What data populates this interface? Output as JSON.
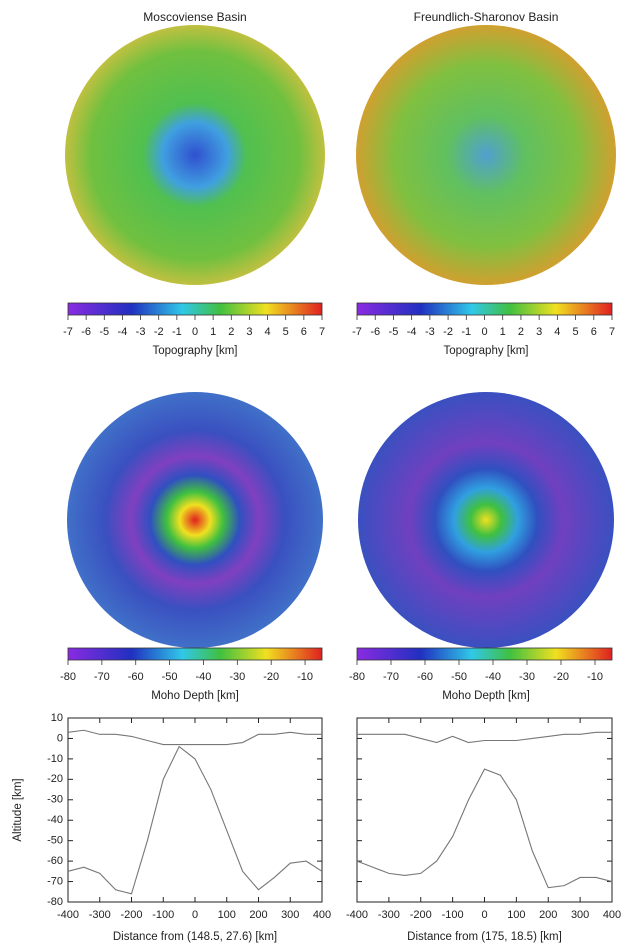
{
  "panels": [
    {
      "title": "Moscoviense Basin",
      "topography_colorbar": {
        "label": "Topography [km]",
        "lim": [
          -7,
          7
        ],
        "ticks": [
          -7,
          -6,
          -5,
          -4,
          -3,
          -2,
          -1,
          0,
          1,
          2,
          3,
          4,
          5,
          6,
          7
        ]
      },
      "moho_colorbar": {
        "label": "Moho Depth [km]",
        "lim": [
          -80,
          -5
        ],
        "ticks": [
          -80,
          -70,
          -60,
          -50,
          -40,
          -30,
          -20,
          -10
        ]
      }
    },
    {
      "title": "Freundlich-Sharonov Basin",
      "topography_colorbar": {
        "label": "Topography [km]",
        "lim": [
          -7,
          7
        ],
        "ticks": [
          -7,
          -6,
          -5,
          -4,
          -3,
          -2,
          -1,
          0,
          1,
          2,
          3,
          4,
          5,
          6,
          7
        ]
      },
      "moho_colorbar": {
        "label": "Moho Depth [km]",
        "lim": [
          -80,
          -5
        ],
        "ticks": [
          -80,
          -70,
          -60,
          -50,
          -40,
          -30,
          -20,
          -10
        ]
      }
    }
  ],
  "chart_data": [
    {
      "type": "line",
      "y_label": "Altitude [km]",
      "x_label": "Distance from (148.5, 27.6) [km]",
      "x": [
        -400,
        -350,
        -300,
        -250,
        -200,
        -150,
        -100,
        -50,
        0,
        50,
        100,
        150,
        200,
        250,
        300,
        350,
        400
      ],
      "series": [
        {
          "color": "#777777",
          "values": [
            3,
            4,
            2,
            2,
            1,
            -1,
            -3,
            -3,
            -3,
            -3,
            -3,
            -2,
            2,
            2,
            3,
            2,
            2
          ]
        },
        {
          "color": "#777777",
          "values": [
            -65,
            -63,
            -66,
            -74,
            -76,
            -50,
            -20,
            -4,
            -10,
            -25,
            -45,
            -65,
            -74,
            -68,
            -61,
            -60,
            -65
          ]
        }
      ],
      "xlim": [
        -400,
        400
      ],
      "xticks": [
        -400,
        -300,
        -200,
        -100,
        0,
        100,
        200,
        300,
        400
      ],
      "ylim": [
        -80,
        10
      ],
      "yticks": [
        10,
        0,
        -10,
        -20,
        -30,
        -40,
        -50,
        -60,
        -70,
        -80
      ],
      "show_ytick_labels": true
    },
    {
      "type": "line",
      "x_label": "Distance from (175, 18.5) [km]",
      "x": [
        -400,
        -350,
        -300,
        -250,
        -200,
        -150,
        -100,
        -50,
        0,
        50,
        100,
        150,
        200,
        250,
        300,
        350,
        400
      ],
      "series": [
        {
          "color": "#777777",
          "values": [
            2,
            2,
            2,
            2,
            0,
            -2,
            1,
            -2,
            -1,
            -1,
            -1,
            0,
            1,
            2,
            2,
            3,
            3
          ]
        },
        {
          "color": "#777777",
          "values": [
            -60,
            -63,
            -66,
            -67,
            -66,
            -60,
            -48,
            -30,
            -15,
            -18,
            -30,
            -55,
            -73,
            -72,
            -68,
            -68,
            -70
          ]
        }
      ],
      "xlim": [
        -400,
        400
      ],
      "xticks": [
        -400,
        -300,
        -200,
        -100,
        0,
        100,
        200,
        300,
        400
      ],
      "ylim": [
        -80,
        10
      ],
      "yticks": [
        10,
        0,
        -10,
        -20,
        -30,
        -40,
        -50,
        -60,
        -70,
        -80
      ],
      "show_ytick_labels": false
    }
  ]
}
